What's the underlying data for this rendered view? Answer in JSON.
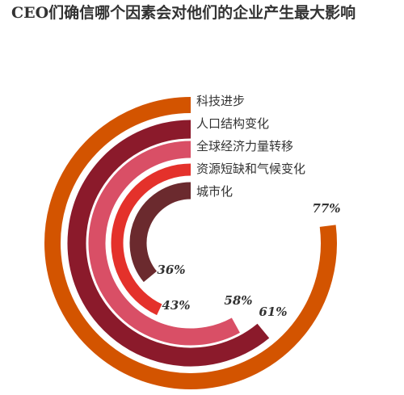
{
  "title": "CEO们确信哪个因素会对他们的企业产生最大影响",
  "chart_data": {
    "type": "radial-bar",
    "title": "CEO们确信哪个因素会对他们的企业产生最大影响",
    "max": 100,
    "series": [
      {
        "name": "科技进步",
        "value": 77,
        "label": "77%",
        "color": "#d35400"
      },
      {
        "name": "人口结构变化",
        "value": 61,
        "label": "61%",
        "color": "#8b1a2b"
      },
      {
        "name": "全球经济力量转移",
        "value": 58,
        "label": "58%",
        "color": "#d94f66"
      },
      {
        "name": "资源短缺和气候变化",
        "value": 43,
        "label": "43%",
        "color": "#e4312b"
      },
      {
        "name": "城市化",
        "value": 36,
        "label": "36%",
        "color": "#6b2a2e"
      }
    ]
  }
}
